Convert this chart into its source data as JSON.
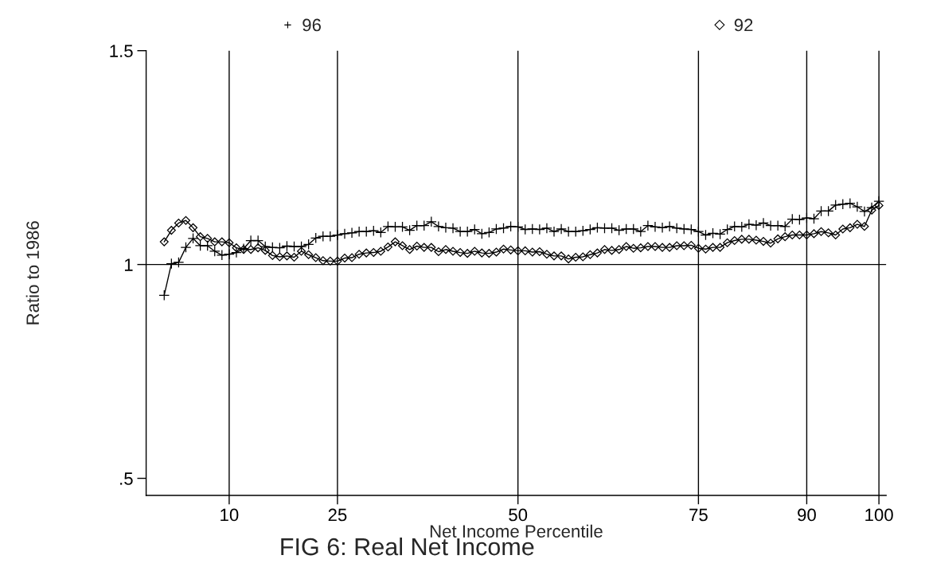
{
  "chart_data": {
    "type": "line",
    "xlabel": "Net Income Percentile",
    "ylabel": "Ratio to 1986",
    "annotations": [
      "FIG 6: Real Net Income"
    ],
    "x": [
      1,
      2,
      3,
      4,
      5,
      6,
      7,
      8,
      9,
      10,
      11,
      12,
      13,
      14,
      15,
      16,
      17,
      18,
      19,
      20,
      21,
      22,
      23,
      24,
      25,
      26,
      27,
      28,
      29,
      30,
      31,
      32,
      33,
      34,
      35,
      36,
      37,
      38,
      39,
      40,
      41,
      42,
      43,
      44,
      45,
      46,
      47,
      48,
      49,
      50,
      51,
      52,
      53,
      54,
      55,
      56,
      57,
      58,
      59,
      60,
      61,
      62,
      63,
      64,
      65,
      66,
      67,
      68,
      69,
      70,
      71,
      72,
      73,
      74,
      75,
      76,
      77,
      78,
      79,
      80,
      81,
      82,
      83,
      84,
      85,
      86,
      87,
      88,
      89,
      90,
      91,
      92,
      93,
      94,
      95,
      96,
      97,
      98,
      99,
      100
    ],
    "series": [
      {
        "name": "96",
        "color": "#000000",
        "marker": "cross",
        "values": [
          0.928,
          1.002,
          1.005,
          1.04,
          1.061,
          1.044,
          1.044,
          1.031,
          1.022,
          1.024,
          1.028,
          1.037,
          1.056,
          1.056,
          1.042,
          1.04,
          1.039,
          1.043,
          1.042,
          1.042,
          1.047,
          1.062,
          1.066,
          1.066,
          1.069,
          1.072,
          1.074,
          1.077,
          1.077,
          1.079,
          1.075,
          1.089,
          1.088,
          1.088,
          1.08,
          1.091,
          1.091,
          1.1,
          1.089,
          1.086,
          1.085,
          1.077,
          1.077,
          1.082,
          1.072,
          1.075,
          1.083,
          1.085,
          1.089,
          1.088,
          1.082,
          1.083,
          1.082,
          1.085,
          1.077,
          1.083,
          1.077,
          1.077,
          1.079,
          1.082,
          1.086,
          1.085,
          1.085,
          1.08,
          1.083,
          1.083,
          1.077,
          1.091,
          1.088,
          1.086,
          1.089,
          1.085,
          1.083,
          1.082,
          1.077,
          1.069,
          1.073,
          1.071,
          1.082,
          1.089,
          1.088,
          1.094,
          1.092,
          1.097,
          1.091,
          1.091,
          1.089,
          1.106,
          1.105,
          1.109,
          1.107,
          1.125,
          1.125,
          1.139,
          1.141,
          1.143,
          1.135,
          1.124,
          1.133,
          1.148
        ]
      },
      {
        "name": "92",
        "color": "#000000",
        "marker": "diamond",
        "values": [
          1.053,
          1.08,
          1.097,
          1.103,
          1.086,
          1.065,
          1.061,
          1.053,
          1.053,
          1.051,
          1.039,
          1.035,
          1.035,
          1.039,
          1.033,
          1.021,
          1.018,
          1.02,
          1.017,
          1.031,
          1.023,
          1.016,
          1.009,
          1.008,
          1.008,
          1.015,
          1.016,
          1.024,
          1.027,
          1.028,
          1.031,
          1.041,
          1.053,
          1.044,
          1.035,
          1.043,
          1.04,
          1.04,
          1.03,
          1.035,
          1.031,
          1.028,
          1.026,
          1.031,
          1.027,
          1.026,
          1.029,
          1.036,
          1.034,
          1.032,
          1.032,
          1.029,
          1.03,
          1.024,
          1.02,
          1.02,
          1.013,
          1.017,
          1.018,
          1.023,
          1.027,
          1.035,
          1.033,
          1.035,
          1.042,
          1.038,
          1.039,
          1.042,
          1.042,
          1.04,
          1.04,
          1.044,
          1.044,
          1.045,
          1.038,
          1.036,
          1.04,
          1.04,
          1.051,
          1.056,
          1.059,
          1.059,
          1.057,
          1.054,
          1.05,
          1.06,
          1.065,
          1.069,
          1.069,
          1.069,
          1.072,
          1.077,
          1.074,
          1.069,
          1.083,
          1.086,
          1.094,
          1.089,
          1.127,
          1.138
        ]
      }
    ],
    "xlim": [
      -1.5,
      101
    ],
    "xticks": [
      10,
      25,
      50,
      75,
      90,
      100
    ],
    "ylim": [
      0.46,
      1.5
    ],
    "yticks": [
      {
        "value": 0.5,
        "label": ".5"
      },
      {
        "value": 1,
        "label": "1"
      },
      {
        "value": 1.5,
        "label": "1.5"
      }
    ],
    "ref_lines": [
      {
        "axis": "y",
        "value": 1,
        "color": "#000000"
      }
    ],
    "grid": "x",
    "legend": "top",
    "line_style": "solid"
  }
}
